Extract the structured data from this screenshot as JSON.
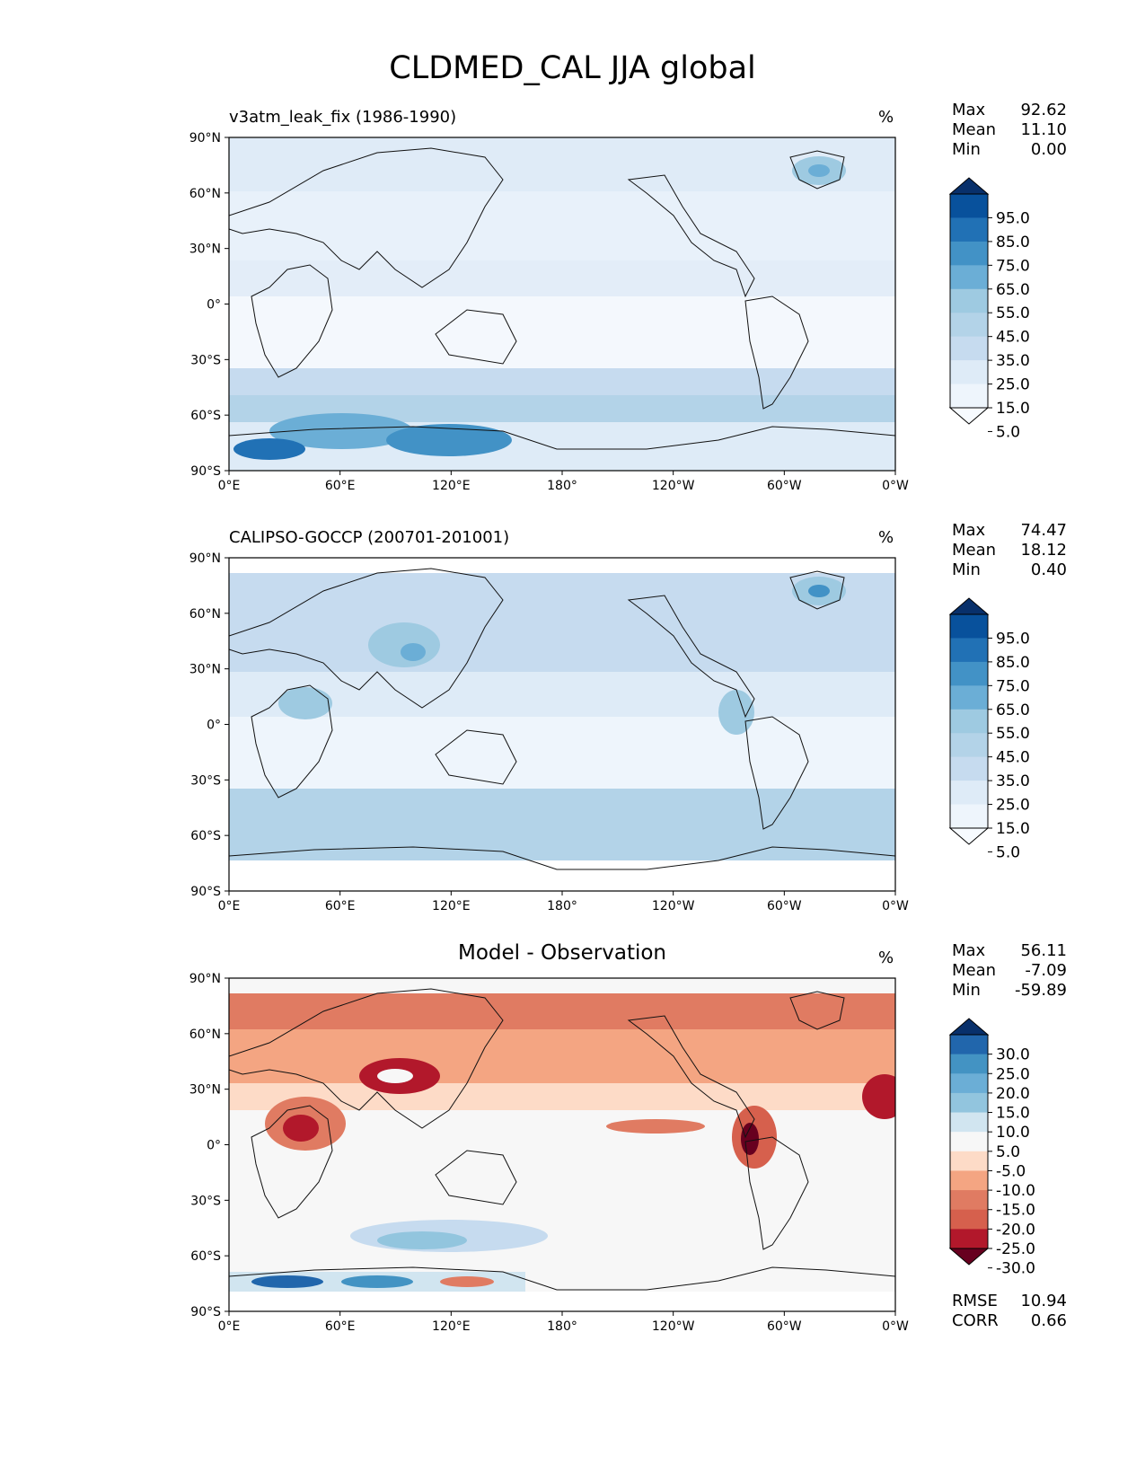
{
  "figure_title": "CLDMED_CAL JJA global",
  "stat_labels": {
    "max": "Max",
    "mean": "Mean",
    "min": "Min"
  },
  "lat_labels": [
    "90°N",
    "60°N",
    "30°N",
    "0°",
    "30°S",
    "60°S",
    "90°S"
  ],
  "lon_labels": [
    "0°E",
    "60°E",
    "120°E",
    "180°",
    "120°W",
    "60°W",
    "0°W"
  ],
  "panels": [
    {
      "title": "v3atm_leak_fix (1986-1990)",
      "units": "%",
      "max": "92.62",
      "mean": "11.10",
      "min": "0.00",
      "colorbar": {
        "levels": [
          "95.0",
          "85.0",
          "75.0",
          "65.0",
          "55.0",
          "45.0",
          "35.0",
          "25.0",
          "15.0",
          "5.0"
        ],
        "colors": [
          "#08306b",
          "#08519c",
          "#2171b5",
          "#4292c6",
          "#6baed6",
          "#9ecae1",
          "#b3d3e8",
          "#c6dbef",
          "#deebf7",
          "#eef5fc",
          "#f7fbff"
        ]
      }
    },
    {
      "title": "CALIPSO-GOCCP (200701-201001)",
      "units": "%",
      "max": "74.47",
      "mean": "18.12",
      "min": "0.40",
      "colorbar": {
        "levels": [
          "95.0",
          "85.0",
          "75.0",
          "65.0",
          "55.0",
          "45.0",
          "35.0",
          "25.0",
          "15.0",
          "5.0"
        ],
        "colors": [
          "#08306b",
          "#08519c",
          "#2171b5",
          "#4292c6",
          "#6baed6",
          "#9ecae1",
          "#b3d3e8",
          "#c6dbef",
          "#deebf7",
          "#eef5fc",
          "#f7fbff"
        ]
      }
    },
    {
      "title": "Model - Observation",
      "units": "%",
      "max": "56.11",
      "mean": "-7.09",
      "min": "-59.89",
      "colorbar": {
        "levels": [
          "30.0",
          "25.0",
          "20.0",
          "15.0",
          "10.0",
          "5.0",
          "-5.0",
          "-10.0",
          "-15.0",
          "-20.0",
          "-25.0",
          "-30.0"
        ],
        "colors": [
          "#08306b",
          "#2166ac",
          "#4393c3",
          "#6baed6",
          "#92c5de",
          "#d1e5f0",
          "#f7f7f7",
          "#fddbc7",
          "#f4a582",
          "#e07b62",
          "#d6604d",
          "#b2182b",
          "#67001f"
        ]
      },
      "rmse_label": "RMSE",
      "rmse": "10.94",
      "corr_label": "CORR",
      "corr": "0.66"
    }
  ]
}
